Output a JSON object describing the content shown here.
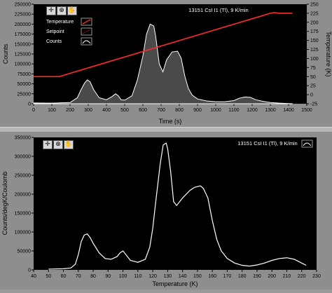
{
  "colors": {
    "panel": "#8e8e8e",
    "plot_bg": "#000000",
    "curve": "#ffffff",
    "temperature_line": "#ff2a2a",
    "text_on_plot": "#ffffff",
    "axis_text": "#000000"
  },
  "top": {
    "title": "13151 CsI I1 (Tl), 9 K/min",
    "toolbar_icons": [
      "cursor-move-icon",
      "zoom-icon",
      "hand-icon"
    ],
    "legend": [
      {
        "label": "Temperature",
        "swatch": "temperature_line"
      },
      {
        "label": "Setpoint",
        "swatch": "setpoint"
      },
      {
        "label": "Counts",
        "swatch": "counts"
      }
    ]
  },
  "bottom": {
    "title": "13151 CsI I1 (Tl), 9 K/min",
    "toolbar_icons": [
      "cursor-move-icon",
      "zoom-icon",
      "hand-icon"
    ]
  },
  "chart_data": [
    {
      "type": "area",
      "title": "13151 CsI I1 (Tl), 9 K/min",
      "xlabel": "Time (s)",
      "ylabel": "Counts",
      "y2label": "Temperature (K)",
      "xlim": [
        0,
        1500
      ],
      "ylim": [
        0,
        250000
      ],
      "y2lim": [
        -25,
        250
      ],
      "x_ticks": [
        0,
        100,
        200,
        300,
        400,
        500,
        600,
        700,
        800,
        900,
        1000,
        1100,
        1200,
        1300,
        1400,
        1500
      ],
      "y_ticks": [
        0,
        25000,
        50000,
        75000,
        100000,
        125000,
        150000,
        175000,
        200000,
        225000,
        250000
      ],
      "y2_ticks": [
        -25,
        0,
        25,
        50,
        75,
        100,
        125,
        150,
        175,
        200,
        225,
        250
      ],
      "legend_position": "top-left",
      "grid": false,
      "series": [
        {
          "name": "Counts",
          "axis": "left",
          "x": [
            0,
            100,
            200,
            240,
            260,
            280,
            295,
            310,
            330,
            360,
            400,
            430,
            450,
            465,
            480,
            500,
            540,
            570,
            600,
            620,
            640,
            660,
            670,
            690,
            710,
            730,
            760,
            790,
            810,
            830,
            850,
            870,
            900,
            950,
            1000,
            1050,
            1100,
            1130,
            1160,
            1190,
            1220,
            1260,
            1300,
            1350,
            1400,
            1420
          ],
          "y": [
            2000,
            1500,
            3000,
            15000,
            35000,
            52000,
            60000,
            55000,
            35000,
            15000,
            10000,
            18000,
            25000,
            20000,
            10000,
            9000,
            20000,
            60000,
            120000,
            175000,
            200000,
            195000,
            170000,
            100000,
            80000,
            110000,
            130000,
            132000,
            115000,
            70000,
            38000,
            22000,
            12000,
            7000,
            5000,
            5000,
            8000,
            14000,
            17000,
            16000,
            10000,
            6000,
            3000,
            1500,
            500,
            200
          ]
        },
        {
          "name": "Temperature",
          "axis": "right",
          "x": [
            0,
            140,
            1300,
            1320,
            1350,
            1420
          ],
          "y": [
            50,
            50,
            225,
            227,
            225,
            225
          ]
        }
      ]
    },
    {
      "type": "line",
      "title": "13151 CsI I1 (Tl), 9 K/min",
      "xlabel": "Temperature (K)",
      "ylabel": "Counts/degK/Coulomb",
      "xlim": [
        40,
        230
      ],
      "ylim": [
        0,
        350000
      ],
      "x_ticks": [
        40,
        50,
        60,
        70,
        80,
        90,
        100,
        110,
        120,
        130,
        140,
        150,
        160,
        170,
        180,
        190,
        200,
        210,
        220,
        230
      ],
      "y_ticks": [
        0,
        50000,
        100000,
        150000,
        200000,
        250000,
        300000,
        350000
      ],
      "grid": false,
      "series": [
        {
          "x": [
            50,
            60,
            65,
            68,
            70,
            72,
            74,
            76,
            78,
            80,
            84,
            88,
            92,
            96,
            98,
            100,
            102,
            105,
            110,
            115,
            118,
            120,
            122,
            125,
            127,
            129,
            130,
            132,
            134,
            136,
            140,
            145,
            148,
            150,
            152,
            154,
            157,
            160,
            163,
            166,
            170,
            175,
            180,
            185,
            190,
            195,
            200,
            205,
            210,
            215,
            220,
            223
          ],
          "y": [
            2000,
            3000,
            5000,
            15000,
            40000,
            75000,
            92000,
            95000,
            85000,
            70000,
            45000,
            30000,
            28000,
            35000,
            45000,
            50000,
            40000,
            25000,
            20000,
            28000,
            60000,
            110000,
            180000,
            280000,
            330000,
            335000,
            320000,
            260000,
            180000,
            170000,
            190000,
            210000,
            218000,
            220000,
            222000,
            215000,
            190000,
            130000,
            80000,
            50000,
            30000,
            18000,
            12000,
            10000,
            13000,
            18000,
            25000,
            30000,
            32000,
            28000,
            18000,
            12000
          ]
        }
      ]
    }
  ]
}
